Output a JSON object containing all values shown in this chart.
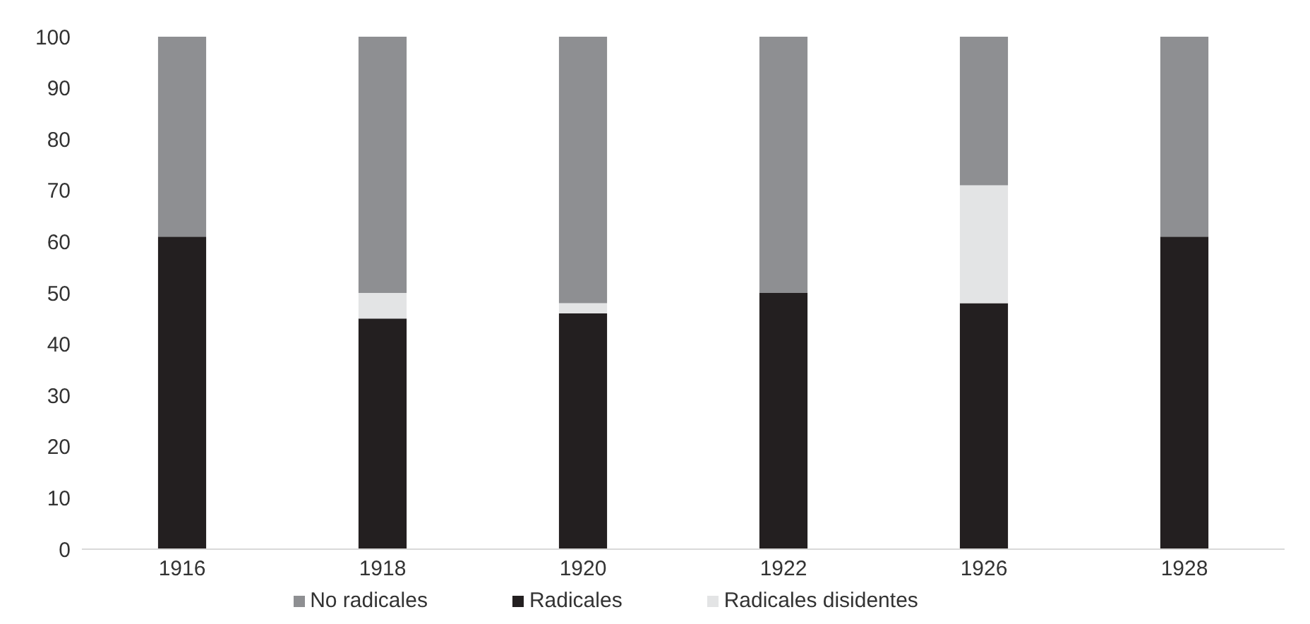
{
  "chart_data": {
    "type": "bar",
    "stacked": true,
    "categories": [
      "1916",
      "1918",
      "1920",
      "1922",
      "1926",
      "1928"
    ],
    "series": [
      {
        "name": "Radicales",
        "color": "#231f20",
        "values": [
          61,
          45,
          46,
          50,
          48,
          61
        ]
      },
      {
        "name": "Radicales disidentes",
        "color": "#e3e4e5",
        "values": [
          0,
          5,
          2,
          0,
          23,
          0
        ]
      },
      {
        "name": "No radicales",
        "color": "#8e8f92",
        "values": [
          39,
          50,
          52,
          50,
          29,
          39
        ]
      }
    ],
    "ylim": [
      0,
      100
    ],
    "yticks": [
      0,
      10,
      20,
      30,
      40,
      50,
      60,
      70,
      80,
      90,
      100
    ],
    "grid": false,
    "legend": "bottom"
  }
}
